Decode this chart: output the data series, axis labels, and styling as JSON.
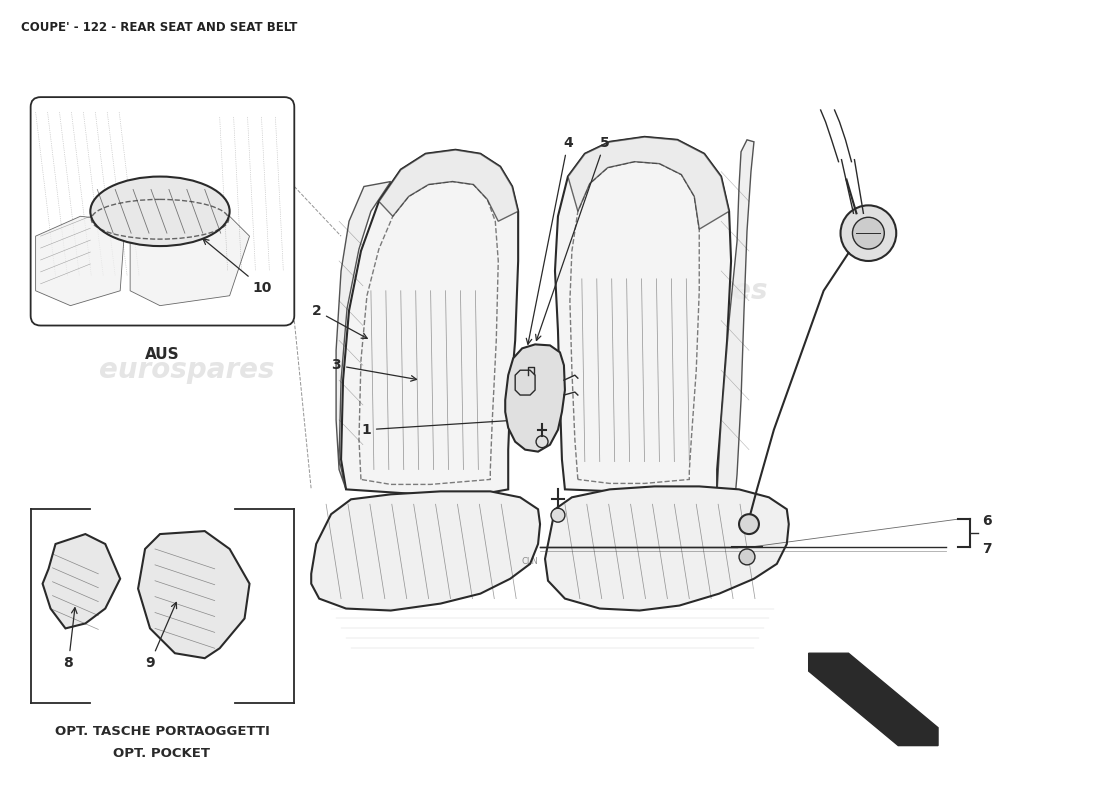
{
  "title": "COUPE' - 122 - REAR SEAT AND SEAT BELT",
  "title_fontsize": 8.5,
  "title_color": "#222222",
  "background_color": "#ffffff",
  "line_color": "#2a2a2a",
  "watermark_color": "#d0d0d0",
  "watermark_text": "eurospares",
  "aus_label": "AUS",
  "aus_label_fontsize": 11,
  "opt_label1": "OPT. TASCHE PORTAOGGETTI",
  "opt_label2": "OPT. POCKET",
  "opt_label_fontsize": 9.5
}
